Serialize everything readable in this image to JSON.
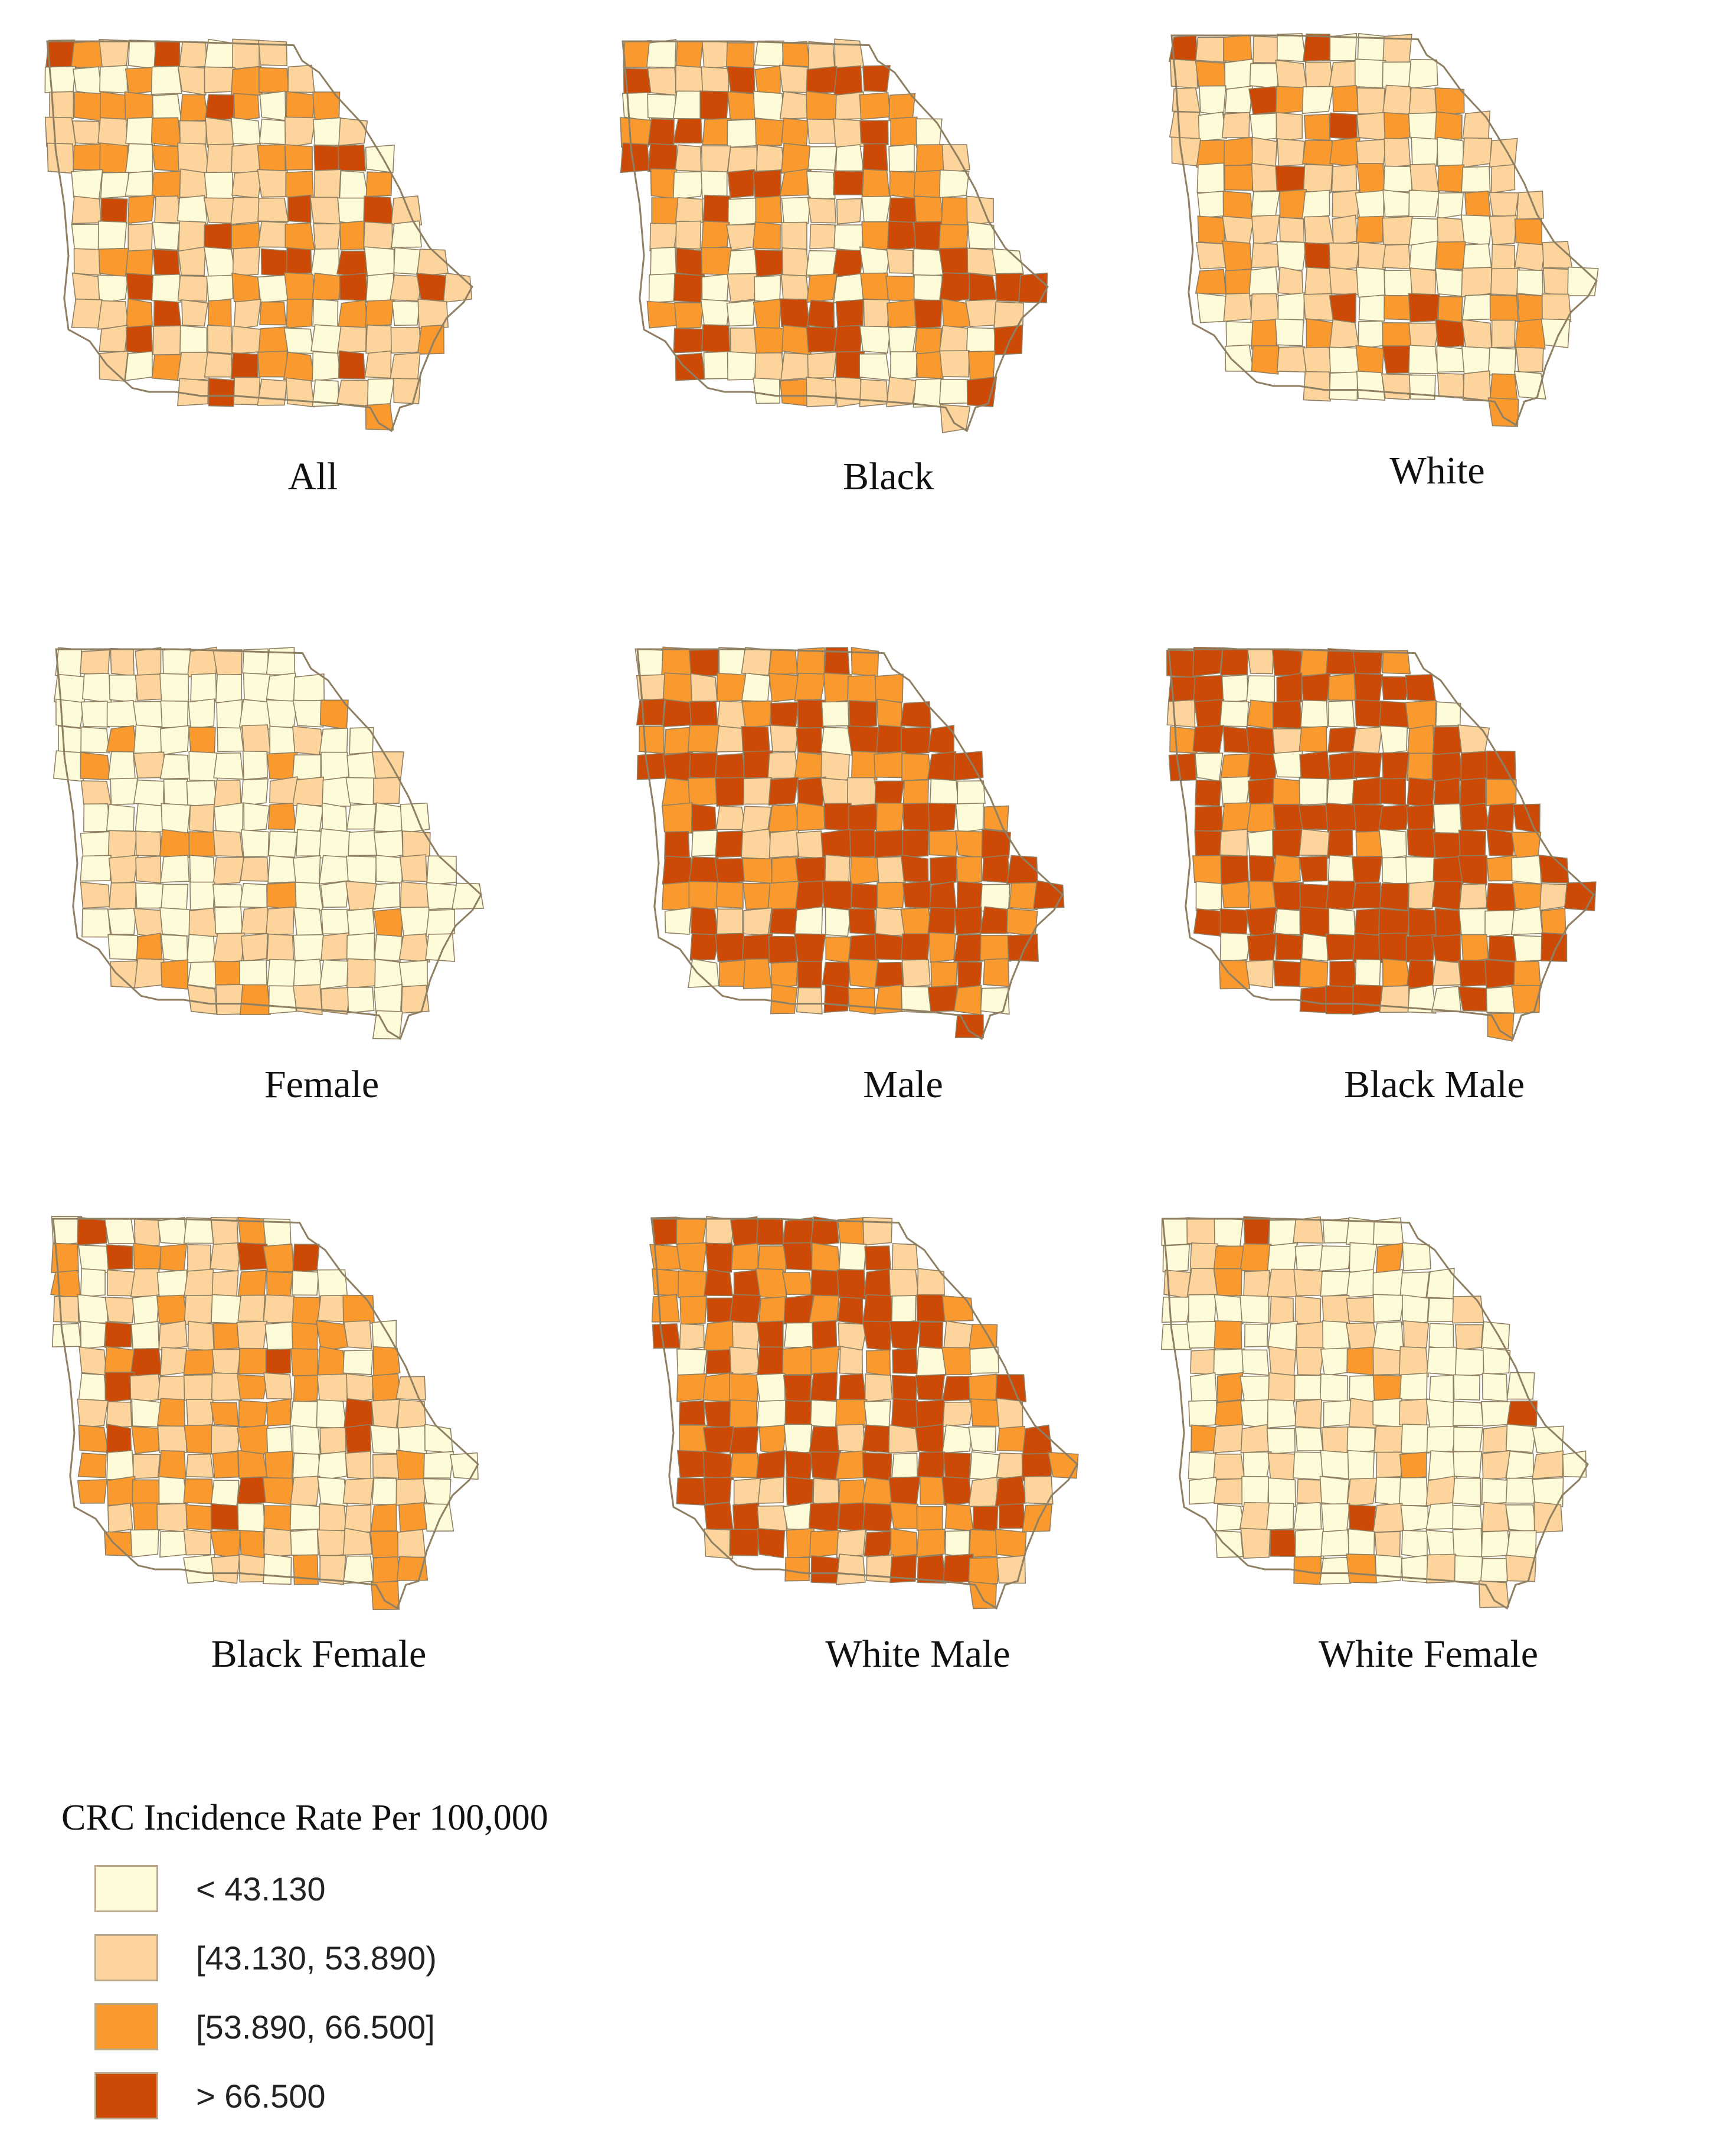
{
  "colors": {
    "c0": "#fdfbd8",
    "c1": "#fdd49b",
    "c2": "#f9992e",
    "c3": "#cc4a06",
    "border": "#8f7f63"
  },
  "maps": [
    {
      "caption": "All",
      "weights": [
        0.32,
        0.34,
        0.26,
        0.08
      ]
    },
    {
      "caption": "Black",
      "weights": [
        0.22,
        0.24,
        0.3,
        0.24
      ]
    },
    {
      "caption": "White",
      "weights": [
        0.36,
        0.38,
        0.2,
        0.06
      ]
    },
    {
      "caption": "Female",
      "weights": [
        0.6,
        0.28,
        0.1,
        0.02
      ]
    },
    {
      "caption": "Male",
      "weights": [
        0.08,
        0.14,
        0.34,
        0.44
      ]
    },
    {
      "caption": "Black Male",
      "weights": [
        0.22,
        0.06,
        0.16,
        0.56
      ]
    },
    {
      "caption": "Black Female",
      "weights": [
        0.28,
        0.26,
        0.32,
        0.14
      ]
    },
    {
      "caption": "White Male",
      "weights": [
        0.1,
        0.14,
        0.3,
        0.46
      ]
    },
    {
      "caption": "White Female",
      "weights": [
        0.62,
        0.26,
        0.1,
        0.02
      ]
    }
  ],
  "legend": {
    "title": "CRC Incidence Rate Per 100,000",
    "items": [
      {
        "label": "< 43.130",
        "color_key": "c0"
      },
      {
        "label": "[43.130, 53.890)",
        "color_key": "c1"
      },
      {
        "label": "[53.890, 66.500]",
        "color_key": "c2"
      },
      {
        "label": "> 66.500",
        "color_key": "c3"
      }
    ]
  }
}
